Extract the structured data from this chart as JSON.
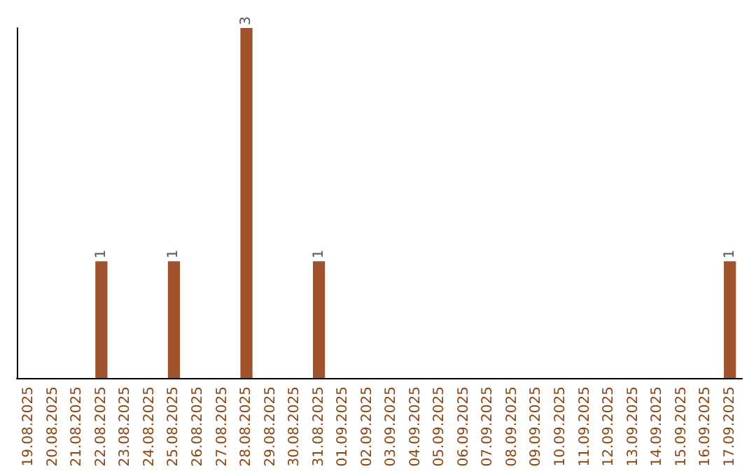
{
  "chart_data": {
    "type": "bar",
    "categories": [
      "19.08.2025",
      "20.08.2025",
      "21.08.2025",
      "22.08.2025",
      "23.08.2025",
      "24.08.2025",
      "25.08.2025",
      "26.08.2025",
      "27.08.2025",
      "28.08.2025",
      "29.08.2025",
      "30.08.2025",
      "31.08.2025",
      "01.09.2025",
      "02.09.2025",
      "03.09.2025",
      "04.09.2025",
      "05.09.2025",
      "06.09.2025",
      "07.09.2025",
      "08.09.2025",
      "09.09.2025",
      "10.09.2025",
      "11.09.2025",
      "12.09.2025",
      "13.09.2025",
      "14.09.2025",
      "15.09.2025",
      "16.09.2025",
      "17.09.2025"
    ],
    "values": [
      0,
      0,
      0,
      1,
      0,
      0,
      1,
      0,
      0,
      3,
      0,
      0,
      1,
      0,
      0,
      0,
      0,
      0,
      0,
      0,
      0,
      0,
      0,
      0,
      0,
      0,
      0,
      0,
      0,
      1
    ],
    "value_labels": [
      null,
      null,
      null,
      "1",
      null,
      null,
      "1",
      null,
      null,
      "3",
      null,
      null,
      "1",
      null,
      null,
      null,
      null,
      null,
      null,
      null,
      null,
      null,
      null,
      null,
      null,
      null,
      null,
      null,
      null,
      "1"
    ],
    "color": "#a0522d",
    "grid": false,
    "tick_labels": "x"
  }
}
